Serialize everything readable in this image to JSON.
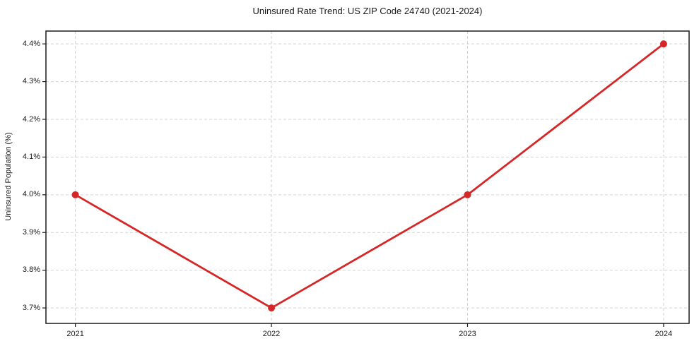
{
  "chart_data": {
    "type": "line",
    "title": "Uninsured Rate Trend: US ZIP Code 24740 (2021-2024)",
    "xlabel": "",
    "ylabel": "Uninsured Population (%)",
    "x": [
      2021,
      2022,
      2023,
      2024
    ],
    "values": [
      4.0,
      3.7,
      4.0,
      4.4
    ],
    "series_name": "Uninsured rate",
    "xtick_labels": [
      "2021",
      "2022",
      "2023",
      "2024"
    ],
    "ytick_values": [
      3.7,
      3.8,
      3.9,
      4.0,
      4.1,
      4.2,
      4.3,
      4.4
    ],
    "ytick_labels": [
      "3.7%",
      "3.8%",
      "3.9%",
      "4.0%",
      "4.1%",
      "4.2%",
      "4.3%",
      "4.4%"
    ],
    "xlim": [
      2020.85,
      2024.13
    ],
    "ylim": [
      3.659,
      4.434
    ],
    "grid": "dashed",
    "legend_position": "none",
    "line_color": "#d62728",
    "marker": "circle",
    "marker_radius": 5,
    "line_width": 2.8,
    "grid_color": "#d2d2d2",
    "axis_color": "#1a1a1a",
    "background_color": "#ffffff"
  }
}
